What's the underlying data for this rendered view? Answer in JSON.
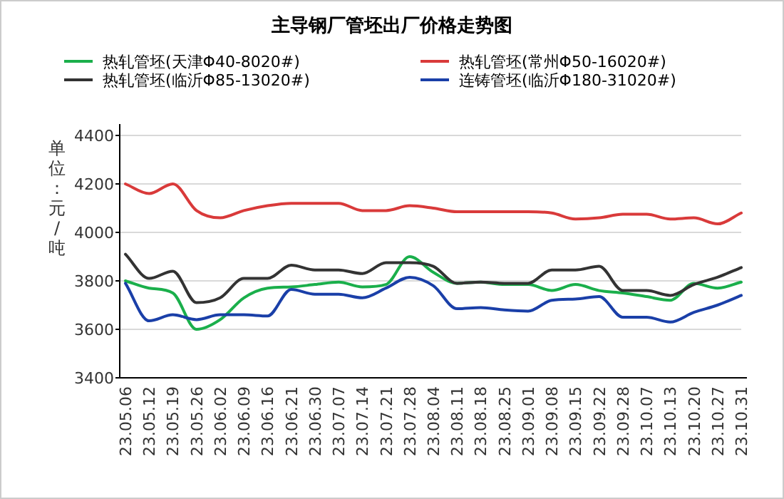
{
  "chart_data": {
    "type": "line",
    "title": "主导钢厂管坯出厂价格走势图",
    "ylabel": "单位：元/吨",
    "categories": [
      "23.05.06",
      "23.05.12",
      "23.05.19",
      "23.05.26",
      "23.06.02",
      "23.06.09",
      "23.06.16",
      "23.06.21",
      "23.06.30",
      "23.07.07",
      "23.07.14",
      "23.07.21",
      "23.07.28",
      "23.08.04",
      "23.08.11",
      "23.08.18",
      "23.08.25",
      "23.09.01",
      "23.09.08",
      "23.09.15",
      "23.09.22",
      "23.09.28",
      "23.10.07",
      "23.10.13",
      "23.10.20",
      "23.10.27",
      "23.10.31"
    ],
    "series": [
      {
        "name": "热轧管坯(天津Φ40-8020#)",
        "color": "#1aaf4b",
        "values": [
          3800,
          3770,
          3750,
          3600,
          3640,
          3730,
          3770,
          3775,
          3785,
          3795,
          3775,
          3785,
          3900,
          3835,
          3790,
          3795,
          3785,
          3785,
          3760,
          3785,
          3760,
          3750,
          3735,
          3720,
          3790,
          3770,
          3795
        ]
      },
      {
        "name": "热轧管坯(常州Φ50-16020#)",
        "color": "#d93a3a",
        "values": [
          4200,
          4160,
          4200,
          4090,
          4060,
          4090,
          4110,
          4120,
          4120,
          4120,
          4090,
          4090,
          4110,
          4100,
          4085,
          4085,
          4085,
          4085,
          4080,
          4055,
          4060,
          4075,
          4075,
          4055,
          4060,
          4035,
          4080
        ]
      },
      {
        "name": "热轧管坯(临沂Φ85-13020#)",
        "color": "#333333",
        "values": [
          3910,
          3810,
          3840,
          3710,
          3730,
          3810,
          3810,
          3865,
          3845,
          3845,
          3830,
          3875,
          3875,
          3860,
          3790,
          3795,
          3790,
          3790,
          3845,
          3845,
          3860,
          3760,
          3760,
          3740,
          3785,
          3815,
          3855
        ]
      },
      {
        "name": "连铸管坯(临沂Φ180-31020#)",
        "color": "#1a3fa8",
        "values": [
          3790,
          3635,
          3660,
          3640,
          3660,
          3660,
          3655,
          3765,
          3745,
          3745,
          3730,
          3770,
          3815,
          3780,
          3685,
          3690,
          3680,
          3675,
          3720,
          3725,
          3735,
          3650,
          3650,
          3630,
          3670,
          3700,
          3740
        ]
      }
    ],
    "ylim": [
      3400,
      4400
    ],
    "yticks": [
      3400,
      3600,
      3800,
      4000,
      4200,
      4400
    ],
    "grid": "y",
    "legend": "top"
  }
}
